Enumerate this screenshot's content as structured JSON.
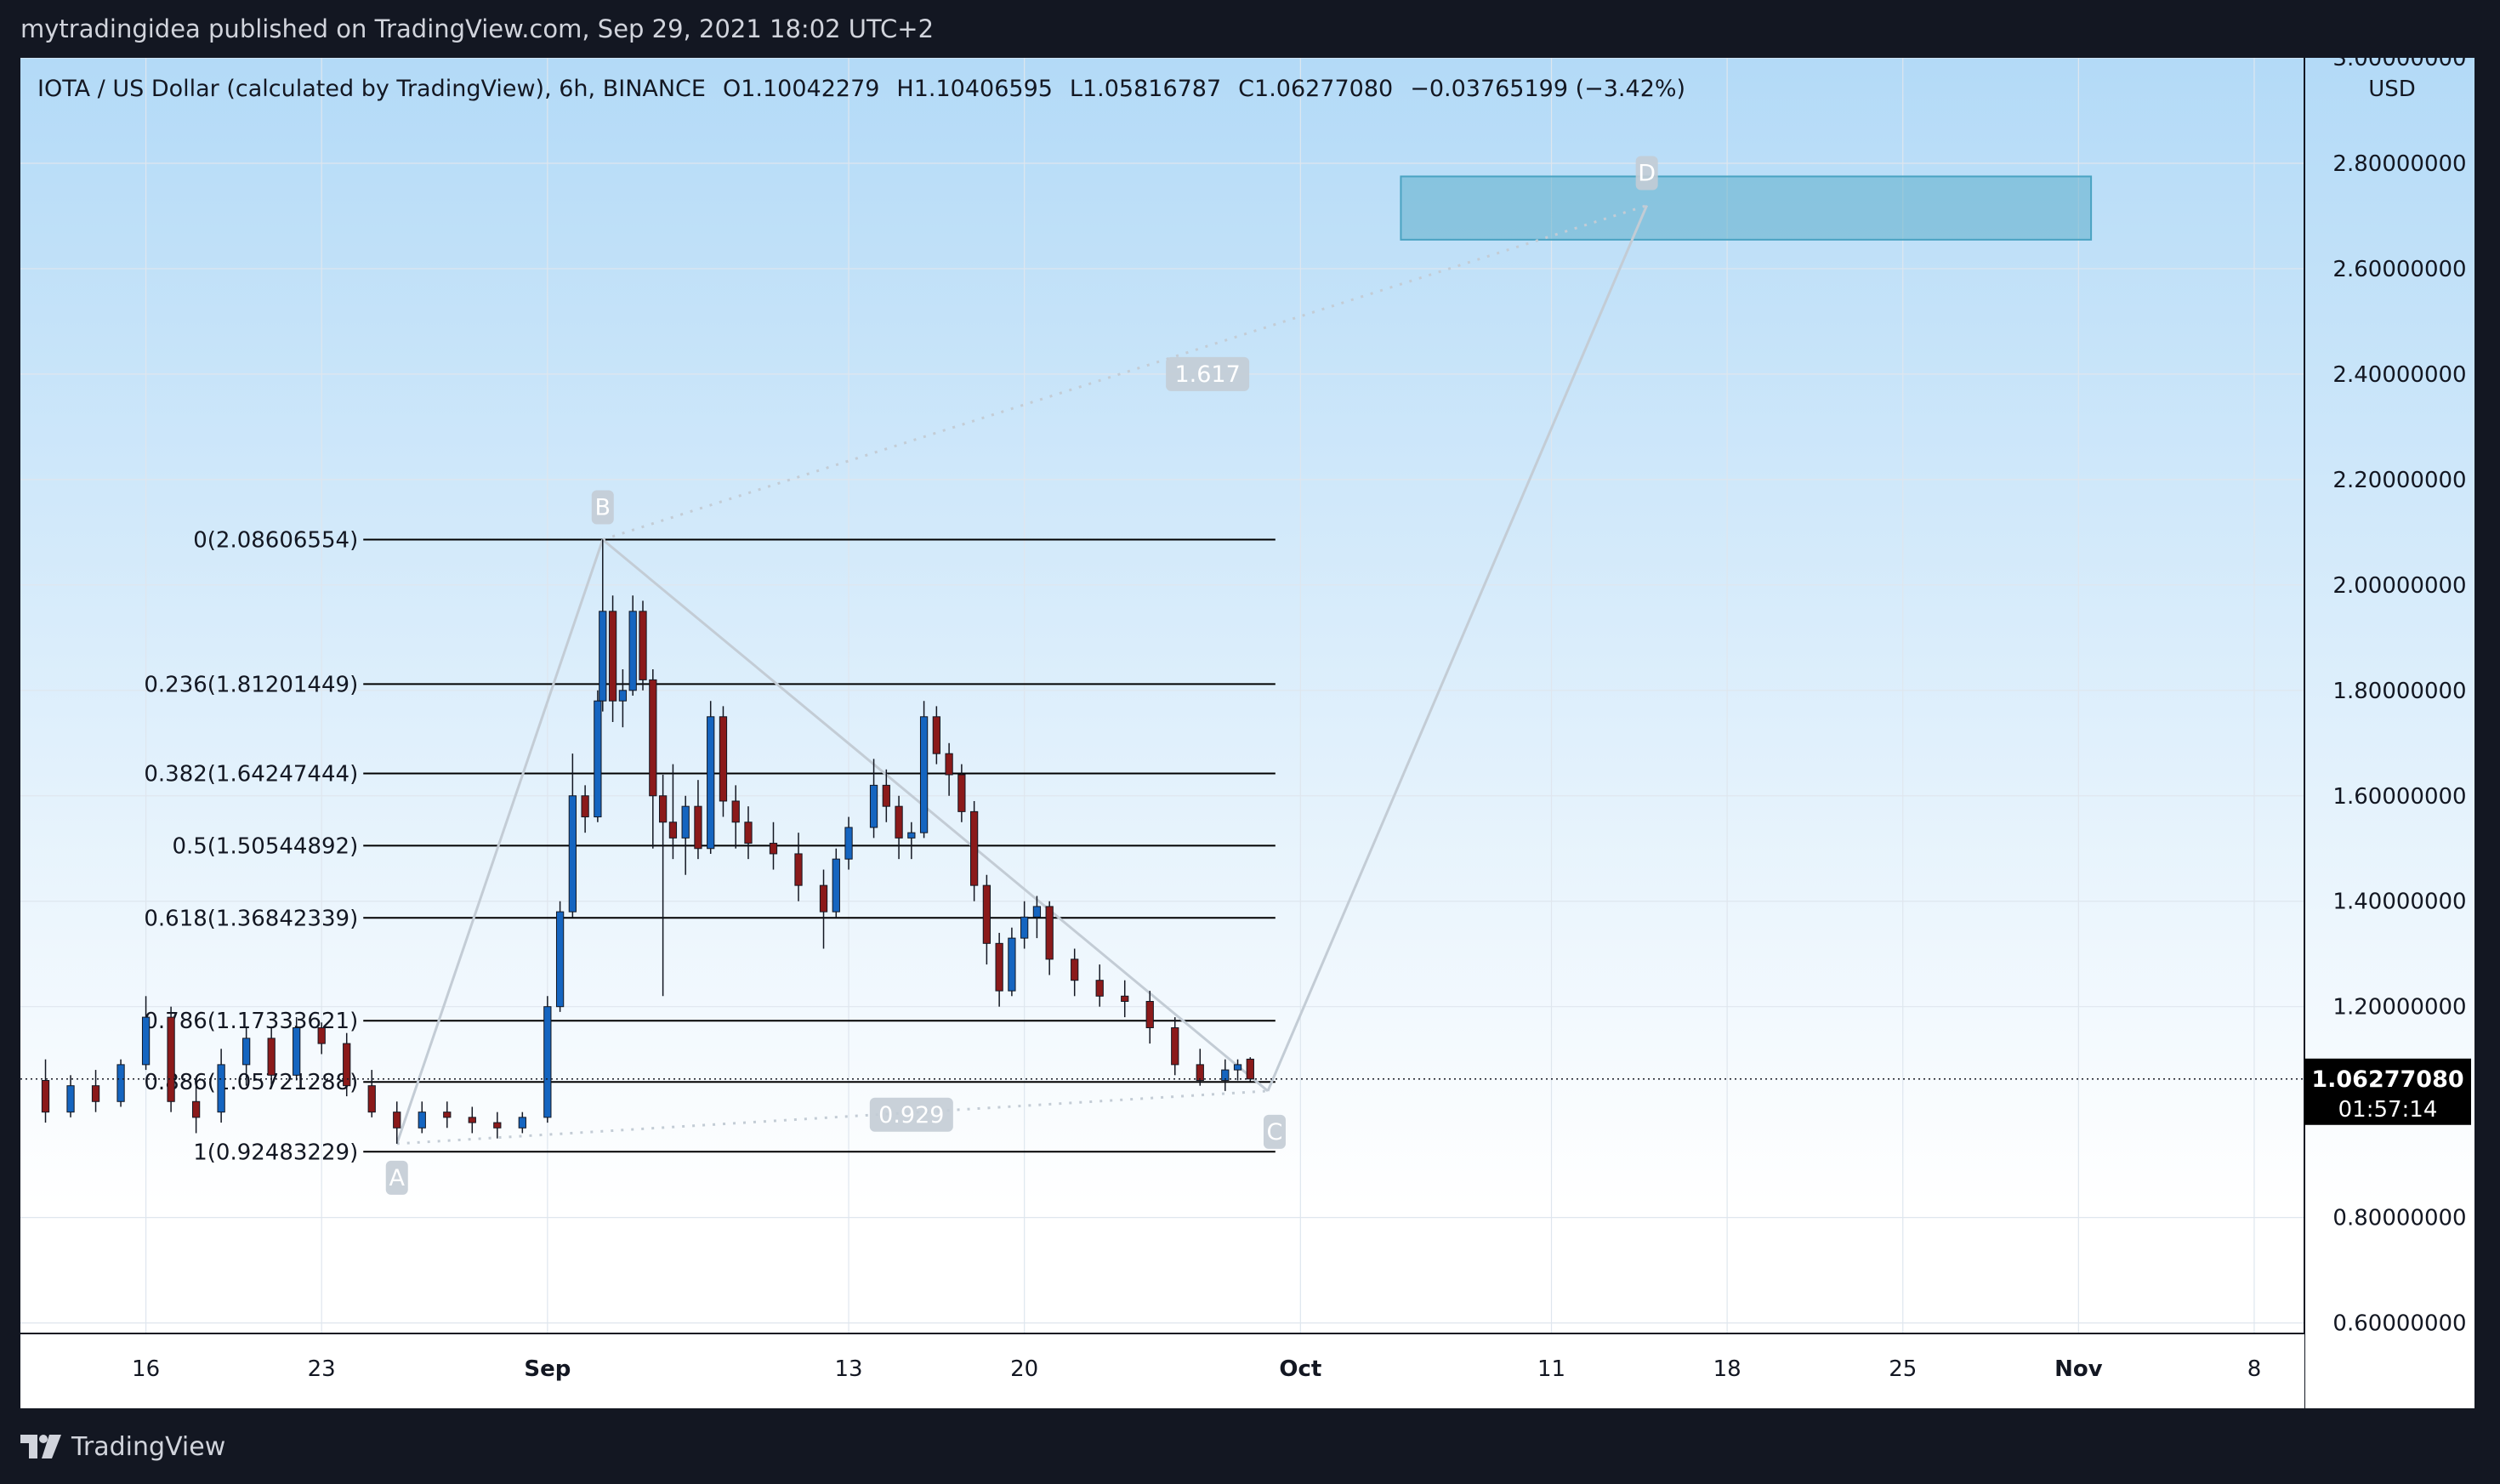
{
  "header": {
    "publish_line": "mytradingidea published on TradingView.com, Sep 29, 2021 18:02 UTC+2"
  },
  "footer": {
    "brand": "TradingView",
    "logo_icon": "tradingview-logo-icon"
  },
  "legend": {
    "symbol": "IOTA / US Dollar (calculated by TradingView), 6h, BINANCE",
    "open_label": "O",
    "open": "1.10042279",
    "high_label": "H",
    "high": "1.10406595",
    "low_label": "L",
    "low": "1.05816787",
    "close_label": "C",
    "close": "1.06277080",
    "change": "−0.03765199 (−3.42%)"
  },
  "chart_data": {
    "type": "candlestick",
    "interval": "6h",
    "currency": "USD",
    "price_scale": {
      "min": 0.58,
      "max": 3.0,
      "tick_labels": [
        "3.00000000",
        "2.80000000",
        "2.60000000",
        "2.40000000",
        "2.20000000",
        "2.00000000",
        "1.80000000",
        "1.60000000",
        "1.40000000",
        "1.20000000",
        "0.80000000",
        "0.60000000"
      ],
      "tick_values": [
        3.0,
        2.8,
        2.6,
        2.4,
        2.2,
        2.0,
        1.8,
        1.6,
        1.4,
        1.2,
        0.8,
        0.6
      ],
      "grid": true
    },
    "time_scale": {
      "labels": [
        "16",
        "23",
        "Sep",
        "13",
        "20",
        "Oct",
        "11",
        "18",
        "25",
        "Nov",
        "8"
      ],
      "label_days": [
        16,
        23,
        32,
        44,
        51,
        62,
        72,
        79,
        86,
        93,
        100
      ],
      "day_origin": "Aug 1, 2021",
      "bold_labels": [
        "Sep",
        "Oct",
        "Nov"
      ],
      "vertical_grid_days": [
        16,
        23,
        32,
        44,
        51,
        62,
        72,
        79,
        86,
        93,
        100
      ],
      "view_days": [
        11,
        102
      ]
    },
    "last_price": {
      "value": 1.0627708,
      "label": "1.06277080",
      "countdown": "01:57:14",
      "color": "#000000"
    },
    "fib_retracement": {
      "levels": [
        {
          "label": "0(2.08606554)",
          "value": 2.08606554
        },
        {
          "label": "0.236(1.81201449)",
          "value": 1.81201449
        },
        {
          "label": "0.382(1.64247444)",
          "value": 1.64247444
        },
        {
          "label": "0.5(1.50544892)",
          "value": 1.50544892
        },
        {
          "label": "0.618(1.36842339)",
          "value": 1.36842339
        },
        {
          "label": "0.786(1.17333621)",
          "value": 1.17333621
        },
        {
          "label": "0.886(1.05721288)",
          "value": 1.05721288
        },
        {
          "label": "1(0.92483229)",
          "value": 0.92483229
        }
      ],
      "day_range": [
        25,
        61
      ]
    },
    "pattern": {
      "points": [
        {
          "label": "A",
          "day": 26.0,
          "price": 0.94
        },
        {
          "label": "B",
          "day": 34.2,
          "price": 2.086
        },
        {
          "label": "C",
          "day": 60.7,
          "price": 1.04
        },
        {
          "label": "D",
          "day": 75.8,
          "price": 2.72
        }
      ],
      "ratios": [
        {
          "label": "1.617",
          "day": 58.3,
          "price": 2.4
        },
        {
          "label": "0.929",
          "day": 46.5,
          "price": 0.995
        }
      ],
      "target_zone": {
        "day_from": 66.0,
        "day_to": 93.5,
        "price_from": 2.655,
        "price_to": 2.775
      }
    },
    "colors": {
      "up": "#1565c0",
      "down": "#8b1a1a",
      "fib_line": "#000000",
      "pattern_line": "#c3ccd5",
      "target_zone": "#4aa3c2",
      "background_top": "#b3daf7",
      "background_bottom": "#ffffff"
    },
    "candles_approx_ohlc": [
      [
        12.0,
        1.06,
        1.1,
        0.98,
        1.0
      ],
      [
        13.0,
        1.0,
        1.07,
        0.99,
        1.05
      ],
      [
        14.0,
        1.05,
        1.08,
        1.0,
        1.02
      ],
      [
        15.0,
        1.02,
        1.1,
        1.01,
        1.09
      ],
      [
        16.0,
        1.09,
        1.22,
        1.08,
        1.18
      ],
      [
        17.0,
        1.18,
        1.2,
        1.0,
        1.02
      ],
      [
        18.0,
        1.02,
        1.05,
        0.96,
        0.99
      ],
      [
        19.0,
        1.0,
        1.12,
        0.98,
        1.09
      ],
      [
        20.0,
        1.09,
        1.16,
        1.05,
        1.14
      ],
      [
        21.0,
        1.14,
        1.16,
        1.05,
        1.07
      ],
      [
        22.0,
        1.07,
        1.18,
        1.06,
        1.16
      ],
      [
        23.0,
        1.16,
        1.17,
        1.11,
        1.13
      ],
      [
        24.0,
        1.13,
        1.15,
        1.03,
        1.05
      ],
      [
        25.0,
        1.05,
        1.08,
        0.99,
        1.0
      ],
      [
        26.0,
        1.0,
        1.02,
        0.94,
        0.97
      ],
      [
        27.0,
        0.97,
        1.02,
        0.96,
        1.0
      ],
      [
        28.0,
        1.0,
        1.02,
        0.97,
        0.99
      ],
      [
        29.0,
        0.99,
        1.01,
        0.96,
        0.98
      ],
      [
        30.0,
        0.98,
        1.0,
        0.95,
        0.97
      ],
      [
        31.0,
        0.97,
        1.0,
        0.96,
        0.99
      ],
      [
        32.0,
        0.99,
        1.22,
        0.98,
        1.2
      ],
      [
        32.5,
        1.2,
        1.4,
        1.19,
        1.38
      ],
      [
        33.0,
        1.38,
        1.68,
        1.37,
        1.6
      ],
      [
        33.5,
        1.6,
        1.62,
        1.53,
        1.56
      ],
      [
        34.0,
        1.56,
        1.8,
        1.55,
        1.78
      ],
      [
        34.2,
        1.78,
        2.086,
        1.76,
        1.95
      ],
      [
        34.6,
        1.95,
        1.98,
        1.74,
        1.78
      ],
      [
        35.0,
        1.78,
        1.84,
        1.73,
        1.8
      ],
      [
        35.4,
        1.8,
        1.98,
        1.79,
        1.95
      ],
      [
        35.8,
        1.95,
        1.97,
        1.8,
        1.82
      ],
      [
        36.2,
        1.82,
        1.84,
        1.5,
        1.6
      ],
      [
        36.6,
        1.6,
        1.64,
        1.22,
        1.55
      ],
      [
        37.0,
        1.55,
        1.66,
        1.48,
        1.52
      ],
      [
        37.5,
        1.52,
        1.6,
        1.45,
        1.58
      ],
      [
        38.0,
        1.58,
        1.63,
        1.48,
        1.5
      ],
      [
        38.5,
        1.5,
        1.78,
        1.49,
        1.75
      ],
      [
        39.0,
        1.75,
        1.77,
        1.56,
        1.59
      ],
      [
        39.5,
        1.59,
        1.62,
        1.5,
        1.55
      ],
      [
        40.0,
        1.55,
        1.58,
        1.48,
        1.51
      ],
      [
        41.0,
        1.51,
        1.55,
        1.46,
        1.49
      ],
      [
        42.0,
        1.49,
        1.53,
        1.4,
        1.43
      ],
      [
        43.0,
        1.43,
        1.46,
        1.31,
        1.38
      ],
      [
        43.5,
        1.38,
        1.5,
        1.37,
        1.48
      ],
      [
        44.0,
        1.48,
        1.56,
        1.46,
        1.54
      ],
      [
        45.0,
        1.54,
        1.67,
        1.52,
        1.62
      ],
      [
        45.5,
        1.62,
        1.65,
        1.55,
        1.58
      ],
      [
        46.0,
        1.58,
        1.6,
        1.48,
        1.52
      ],
      [
        46.5,
        1.52,
        1.55,
        1.48,
        1.53
      ],
      [
        47.0,
        1.53,
        1.78,
        1.52,
        1.75
      ],
      [
        47.5,
        1.75,
        1.77,
        1.66,
        1.68
      ],
      [
        48.0,
        1.68,
        1.7,
        1.6,
        1.64
      ],
      [
        48.5,
        1.64,
        1.66,
        1.55,
        1.57
      ],
      [
        49.0,
        1.57,
        1.59,
        1.4,
        1.43
      ],
      [
        49.5,
        1.43,
        1.45,
        1.28,
        1.32
      ],
      [
        50.0,
        1.32,
        1.34,
        1.2,
        1.23
      ],
      [
        50.5,
        1.23,
        1.35,
        1.22,
        1.33
      ],
      [
        51.0,
        1.33,
        1.4,
        1.31,
        1.37
      ],
      [
        51.5,
        1.37,
        1.41,
        1.33,
        1.39
      ],
      [
        52.0,
        1.39,
        1.4,
        1.26,
        1.29
      ],
      [
        53.0,
        1.29,
        1.31,
        1.22,
        1.25
      ],
      [
        54.0,
        1.25,
        1.28,
        1.2,
        1.22
      ],
      [
        55.0,
        1.22,
        1.25,
        1.18,
        1.21
      ],
      [
        56.0,
        1.21,
        1.23,
        1.13,
        1.16
      ],
      [
        57.0,
        1.16,
        1.18,
        1.07,
        1.09
      ],
      [
        58.0,
        1.09,
        1.12,
        1.05,
        1.06
      ],
      [
        59.0,
        1.06,
        1.1,
        1.04,
        1.08
      ],
      [
        59.5,
        1.08,
        1.1,
        1.06,
        1.09
      ],
      [
        60.0,
        1.10042279,
        1.10406595,
        1.05816787,
        1.0627708
      ]
    ]
  }
}
